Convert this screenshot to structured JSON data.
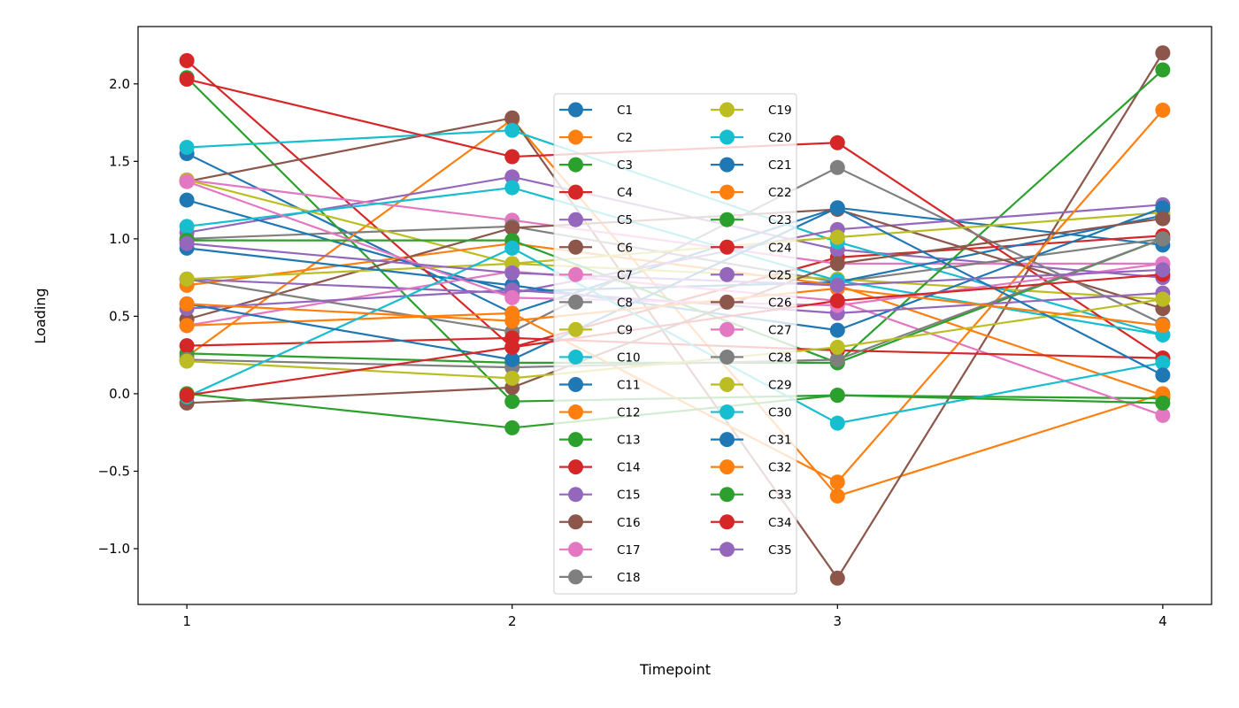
{
  "chart_data": {
    "type": "line",
    "title": "",
    "xlabel": "Timepoint",
    "ylabel": "Loading",
    "x": [
      1,
      2,
      3,
      4
    ],
    "xlim": [
      0.85,
      4.15
    ],
    "ylim": [
      -1.36,
      2.37
    ],
    "xticks": [
      1,
      2,
      3,
      4
    ],
    "xtick_labels": [
      "1",
      "2",
      "3",
      "4"
    ],
    "yticks": [
      -1.0,
      -0.5,
      0.0,
      0.5,
      1.0,
      1.5,
      2.0
    ],
    "ytick_labels": [
      "−1.0",
      "−0.5",
      "0.0",
      "0.5",
      "1.0",
      "1.5",
      "2.0"
    ],
    "grid": false,
    "legend_placement": "center",
    "legend_columns": 2,
    "palette": [
      "#1f77b4",
      "#ff7f0e",
      "#2ca02c",
      "#d62728",
      "#9467bd",
      "#8c564b",
      "#e377c2",
      "#7f7f7f",
      "#bcbd22",
      "#17becf"
    ],
    "series": [
      {
        "name": "C1",
        "values": [
          1.55,
          0.52,
          1.2,
          0.96
        ]
      },
      {
        "name": "C2",
        "values": [
          0.24,
          1.77,
          -0.66,
          0.0
        ]
      },
      {
        "name": "C3",
        "values": [
          2.04,
          -0.05,
          -0.01,
          -0.03
        ]
      },
      {
        "name": "C4",
        "values": [
          2.15,
          0.3,
          0.88,
          1.02
        ]
      },
      {
        "name": "C5",
        "values": [
          1.04,
          1.4,
          0.93,
          0.75
        ]
      },
      {
        "name": "C6",
        "values": [
          1.37,
          1.78,
          -1.19,
          2.2
        ]
      },
      {
        "name": "C7",
        "values": [
          1.38,
          1.12,
          0.84,
          0.84
        ]
      },
      {
        "name": "C8",
        "values": [
          1.0,
          1.08,
          0.72,
          1.0
        ]
      },
      {
        "name": "C9",
        "values": [
          1.38,
          0.84,
          0.74,
          0.61
        ]
      },
      {
        "name": "C10",
        "values": [
          1.59,
          1.7,
          0.98,
          0.38
        ]
      },
      {
        "name": "C11",
        "values": [
          1.25,
          0.66,
          0.72,
          1.15
        ]
      },
      {
        "name": "C12",
        "values": [
          0.7,
          0.97,
          0.7,
          -0.01
        ]
      },
      {
        "name": "C13",
        "values": [
          0.26,
          0.2,
          0.2,
          2.09
        ]
      },
      {
        "name": "C14",
        "values": [
          2.03,
          1.53,
          1.62,
          0.23
        ]
      },
      {
        "name": "C15",
        "values": [
          0.74,
          0.65,
          1.06,
          1.22
        ]
      },
      {
        "name": "C16",
        "values": [
          0.48,
          1.07,
          1.19,
          0.55
        ]
      },
      {
        "name": "C17",
        "values": [
          0.44,
          0.79,
          0.6,
          -0.14
        ]
      },
      {
        "name": "C18",
        "values": [
          0.74,
          0.4,
          1.46,
          0.45
        ]
      },
      {
        "name": "C19",
        "values": [
          0.74,
          0.84,
          1.01,
          1.17
        ]
      },
      {
        "name": "C20",
        "values": [
          1.08,
          1.33,
          0.73,
          0.38
        ]
      },
      {
        "name": "C21",
        "values": [
          0.94,
          0.7,
          0.41,
          1.2
        ]
      },
      {
        "name": "C22",
        "values": [
          0.44,
          0.52,
          -0.57,
          1.83
        ]
      },
      {
        "name": "C23",
        "values": [
          0.99,
          0.99,
          0.2,
          1.0
        ]
      },
      {
        "name": "C24",
        "values": [
          0.31,
          0.36,
          0.28,
          0.23
        ]
      },
      {
        "name": "C25",
        "values": [
          0.55,
          0.67,
          0.52,
          0.65
        ]
      },
      {
        "name": "C26",
        "values": [
          -0.06,
          0.04,
          0.84,
          1.13
        ]
      },
      {
        "name": "C27",
        "values": [
          1.37,
          0.62,
          0.57,
          0.84
        ]
      },
      {
        "name": "C28",
        "values": [
          0.22,
          0.17,
          0.22,
          1.0
        ]
      },
      {
        "name": "C29",
        "values": [
          0.21,
          0.1,
          0.3,
          0.61
        ]
      },
      {
        "name": "C30",
        "values": [
          -0.02,
          0.94,
          -0.19,
          0.2
        ]
      },
      {
        "name": "C31",
        "values": [
          0.58,
          0.22,
          1.2,
          0.12
        ]
      },
      {
        "name": "C32",
        "values": [
          0.58,
          0.47,
          0.68,
          0.44
        ]
      },
      {
        "name": "C33",
        "values": [
          0.0,
          -0.22,
          -0.01,
          -0.06
        ]
      },
      {
        "name": "C34",
        "values": [
          -0.01,
          0.3,
          0.6,
          0.77
        ]
      },
      {
        "name": "C35",
        "values": [
          0.97,
          0.78,
          0.7,
          0.8
        ]
      }
    ]
  }
}
